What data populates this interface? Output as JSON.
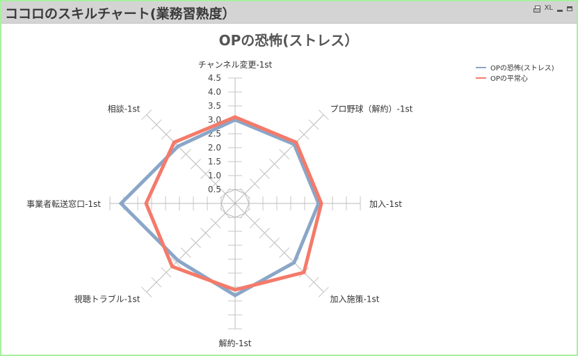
{
  "window": {
    "title": "ココロのスキルチャート(業務習熟度）",
    "xl_label": "XL"
  },
  "chart_data": {
    "type": "radar",
    "title": "OPの恐怖(ストレス）",
    "categories": [
      "チャンネル変更-1st",
      "プロ野球（解約）-1st",
      "加入-1st",
      "加入施策-1st",
      "解約-1st",
      "視聴トラブル-1st",
      "事業者転送窓口-1st",
      "相談-1st"
    ],
    "rlim": [
      0,
      4.5
    ],
    "ticks": [
      "0.5",
      "1.0",
      "1.5",
      "2.0",
      "2.5",
      "3.0",
      "3.5",
      "4.0",
      "4.5"
    ],
    "legend_position": "top-right",
    "series": [
      {
        "name": "OPの恐怖(ストレス)",
        "color": "#8aa6c8",
        "values": [
          3.0,
          3.0,
          3.0,
          3.0,
          3.3,
          2.9,
          4.1,
          2.9
        ]
      },
      {
        "name": "OPの平常心",
        "color": "#f47a6a",
        "values": [
          3.1,
          3.1,
          3.1,
          3.5,
          3.1,
          3.2,
          3.2,
          3.1
        ]
      }
    ]
  }
}
